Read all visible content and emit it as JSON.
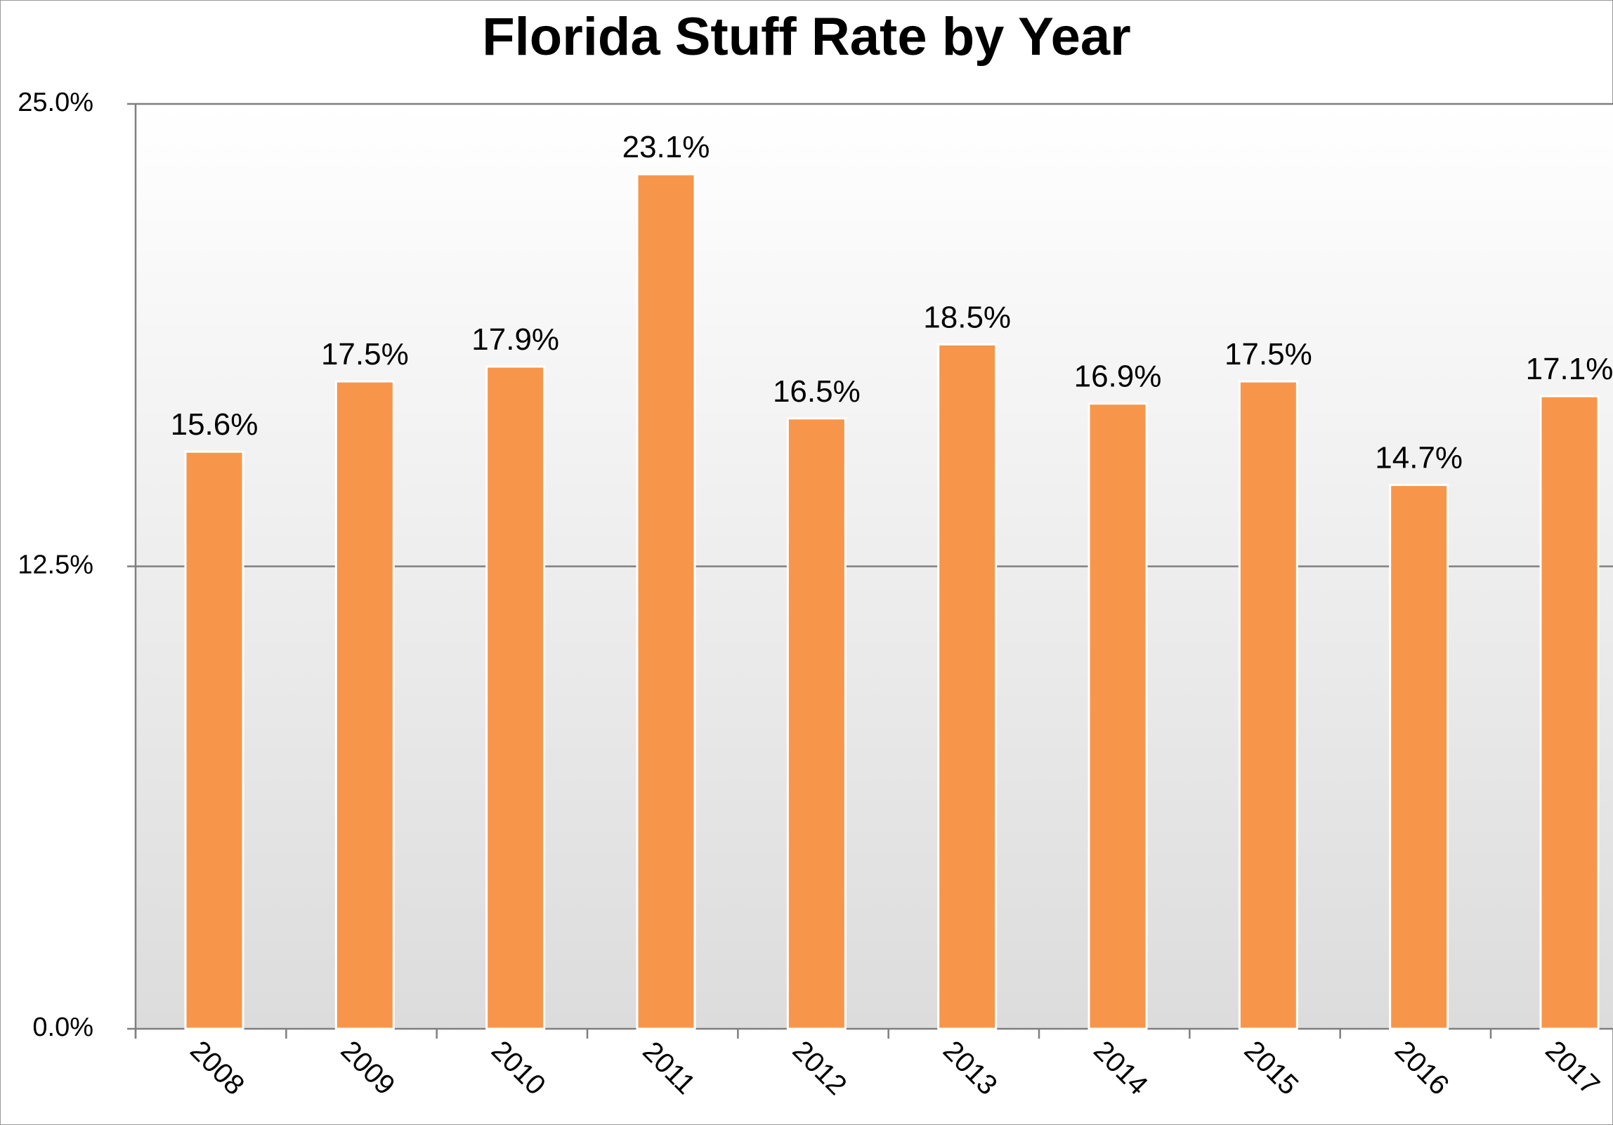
{
  "chart_data": {
    "type": "bar",
    "title": "Florida Stuff Rate by Year",
    "xlabel": "",
    "ylabel": "",
    "categories": [
      "2008",
      "2009",
      "2010",
      "2011",
      "2012",
      "2013",
      "2014",
      "2015",
      "2016",
      "2017"
    ],
    "values": [
      15.6,
      17.5,
      17.9,
      23.1,
      16.5,
      18.5,
      16.9,
      17.5,
      14.7,
      17.1
    ],
    "data_labels": [
      "15.6%",
      "17.5%",
      "17.9%",
      "23.1%",
      "16.5%",
      "18.5%",
      "16.9%",
      "17.5%",
      "14.7%",
      "17.1%"
    ],
    "ylim": [
      0,
      25
    ],
    "yticks": [
      0,
      12.5,
      25
    ],
    "ytick_labels": [
      "0.0%",
      "12.5%",
      "25.0%"
    ],
    "grid": true,
    "legend": "none",
    "colors": {
      "bar": "#F7964A",
      "bar_border": "#ffffff",
      "plot_bg_top": "#ffffff",
      "plot_bg_bottom": "#dcdcdc",
      "gridline": "#7f7f7f",
      "axis": "#7f7f7f"
    }
  }
}
